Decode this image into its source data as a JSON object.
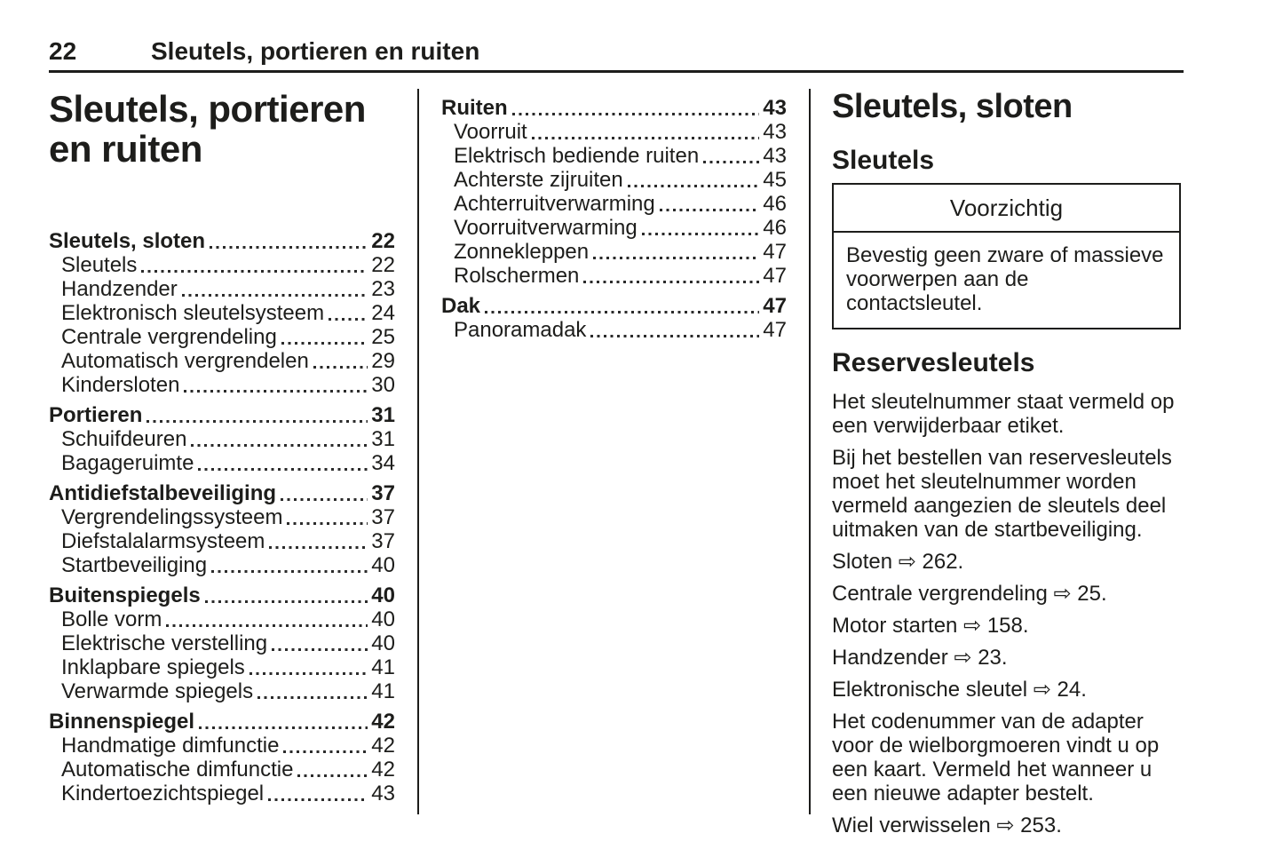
{
  "page_header": {
    "number": "22",
    "title": "Sleutels, portieren en ruiten"
  },
  "chapter": {
    "title_lines": [
      "Sleutels, portieren",
      "en ruiten"
    ]
  },
  "toc_col1": [
    {
      "label": "Sleutels, sloten",
      "page": "22",
      "bold": true
    },
    {
      "label": "Sleutels",
      "page": "22"
    },
    {
      "label": "Handzender",
      "page": "23"
    },
    {
      "label": "Elektronisch sleutelsysteem",
      "page": "24"
    },
    {
      "label": "Centrale vergrendeling",
      "page": "25"
    },
    {
      "label": "Automatisch vergrendelen",
      "page": "29"
    },
    {
      "label": "Kindersloten",
      "page": "30"
    },
    {
      "label": "Portieren",
      "page": "31",
      "bold": true
    },
    {
      "label": "Schuifdeuren",
      "page": "31"
    },
    {
      "label": "Bagageruimte",
      "page": "34"
    },
    {
      "label": "Antidiefstalbeveiliging",
      "page": "37",
      "bold": true
    },
    {
      "label": "Vergrendelingssysteem",
      "page": "37"
    },
    {
      "label": "Diefstalalarmsysteem",
      "page": "37"
    },
    {
      "label": "Startbeveiliging",
      "page": "40"
    },
    {
      "label": "Buitenspiegels",
      "page": "40",
      "bold": true
    },
    {
      "label": "Bolle vorm",
      "page": "40"
    },
    {
      "label": "Elektrische verstelling",
      "page": "40"
    },
    {
      "label": "Inklapbare spiegels",
      "page": "41"
    },
    {
      "label": "Verwarmde spiegels",
      "page": "41"
    },
    {
      "label": "Binnenspiegel",
      "page": "42",
      "bold": true
    },
    {
      "label": "Handmatige dimfunctie",
      "page": "42"
    },
    {
      "label": "Automatische dimfunctie",
      "page": "42"
    },
    {
      "label": "Kindertoezichtspiegel",
      "page": "43"
    }
  ],
  "toc_col2": [
    {
      "label": "Ruiten",
      "page": "43",
      "bold": true
    },
    {
      "label": "Voorruit",
      "page": "43"
    },
    {
      "label": "Elektrisch bediende ruiten",
      "page": "43"
    },
    {
      "label": "Achterste zijruiten",
      "page": "45"
    },
    {
      "label": "Achterruitverwarming",
      "page": "46"
    },
    {
      "label": "Voorruitverwarming",
      "page": "46"
    },
    {
      "label": "Zonnekleppen",
      "page": "47"
    },
    {
      "label": "Rolschermen",
      "page": "47"
    },
    {
      "label": "Dak",
      "page": "47",
      "bold": true
    },
    {
      "label": "Panoramadak",
      "page": "47"
    }
  ],
  "section": {
    "title": "Sleutels, sloten",
    "subsection": "Sleutels",
    "caution": {
      "title": "Voorzichtig",
      "body": "Bevestig geen zware of massieve voorwerpen aan de contactsleutel."
    },
    "subheading": "Reservesleutels",
    "paragraphs": [
      "Het sleutelnummer staat vermeld op een verwijderbaar etiket.",
      "Bij het bestellen van reservesleutels moet het sleutelnummer worden vermeld aangezien de sleutels deel uitmaken van de startbeveiliging.",
      "Sloten ⇨ 262.",
      "Centrale vergrendeling ⇨ 25.",
      "Motor starten ⇨ 158.",
      "Handzender ⇨ 23.",
      "Elektronische sleutel ⇨ 24.",
      "Het codenummer van de adapter voor de wielborgmoeren vindt u op een kaart. Vermeld het wanneer u een nieuwe adapter bestelt.",
      "Wiel verwisselen ⇨ 253."
    ]
  },
  "colors": {
    "text": "#1d1d1b",
    "background": "#ffffff",
    "rule": "#1d1d1b"
  }
}
